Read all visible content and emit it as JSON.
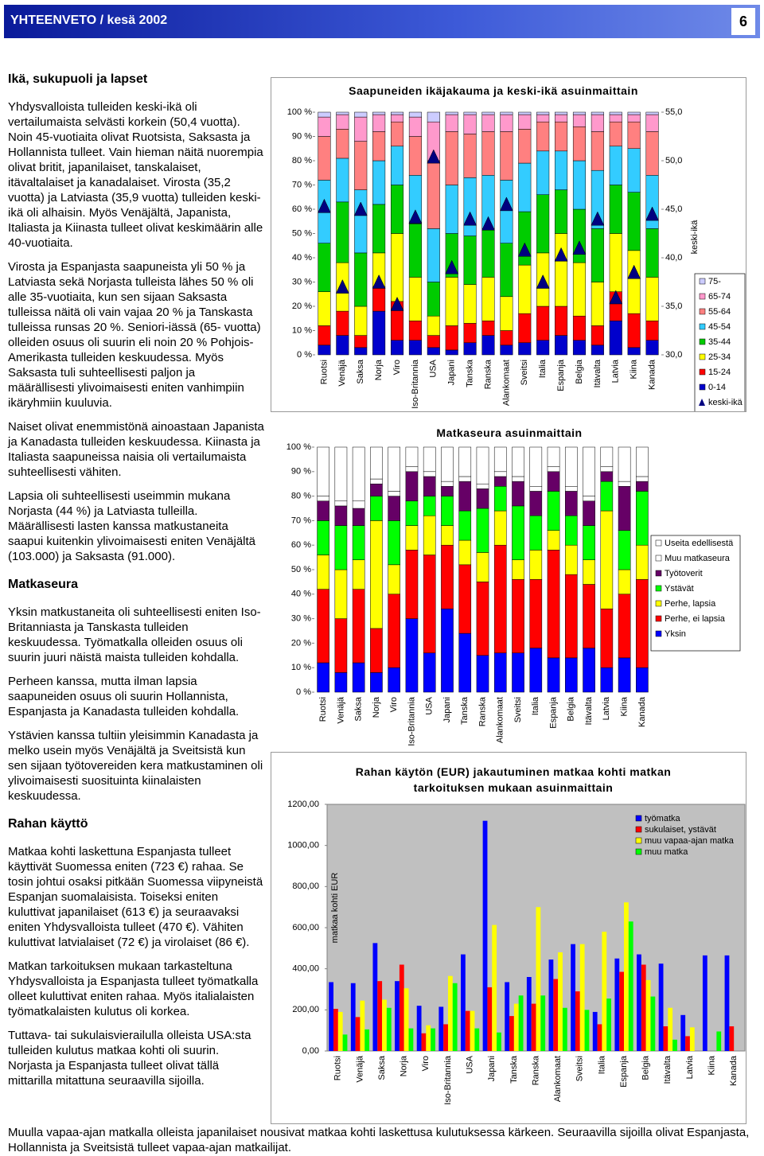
{
  "header": {
    "title": "YHTEENVETO / kesä 2002",
    "page": "6"
  },
  "sections": [
    {
      "heading": "Ikä, sukupuoli ja lapset",
      "paragraphs": [
        "Yhdysvalloista tulleiden keski-ikä oli vertailumaista selvästi korkein (50,4 vuotta). Noin 45-vuotiaita olivat Ruotsista, Saksasta ja Hollannista tulleet. Vain hieman näitä nuorempia olivat britit, japanilaiset, tanskalaiset, itävaltalaiset ja kanadalaiset. Virosta (35,2 vuotta) ja Latviasta (35,9 vuotta) tulleiden keski-ikä oli alhaisin. Myös Venäjältä, Japanista, Italiasta ja Kiinasta tulleet olivat keskimäärin alle 40-vuotiaita.",
        "Virosta ja Espanjasta saapuneista yli 50 % ja Latviasta sekä Norjasta tulleista lähes 50 % oli alle 35-vuotiaita, kun sen sijaan Saksasta tulleissa näitä oli vain vajaa 20 % ja Tanskasta tulleissa runsas 20 %. Seniori-iässä (65- vuotta) olleiden osuus oli suurin eli noin 20 % Pohjois-Amerikasta tulleiden keskuudessa. Myös Saksasta tuli suhteellisesti paljon ja määrällisesti ylivoimaisesti eniten vanhimpiin ikäryhmiin kuuluvia.",
        "Naiset olivat enemmistönä ainoastaan Japanista ja Kanadasta tulleiden keskuudessa. Kiinasta ja Italiasta saapuneissa naisia oli vertailumaista suhteellisesti vähiten.",
        "Lapsia oli suhteellisesti useimmin mukana Norjasta (44 %) ja Latviasta tulleilla. Määrällisesti lasten kanssa matkustaneita saapui kuitenkin ylivoimaisesti eniten Venäjältä (103.000) ja Saksasta (91.000)."
      ]
    },
    {
      "heading": "Matkaseura",
      "paragraphs": [
        "Yksin matkustaneita oli suhteellisesti eniten Iso-Britanniasta ja Tanskasta tulleiden keskuudessa. Työmatkalla olleiden osuus oli suurin juuri näistä maista tulleiden kohdalla.",
        "Perheen kanssa, mutta ilman lapsia saapuneiden osuus oli suurin Hollannista, Espanjasta ja Kanadasta tulleiden kohdalla.",
        "Ystävien kanssa tultiin yleisimmin Kanadasta ja melko usein myös Venäjältä ja Sveitsistä kun sen sijaan työtovereiden kera matkustaminen oli ylivoimaisesti suosituinta kiinalaisten keskuudessa."
      ]
    },
    {
      "heading": "Rahan käyttö",
      "paragraphs": [
        "Matkaa kohti laskettuna Espanjasta tulleet käyttivät Suomessa eniten (723 €) rahaa. Se tosin johtui osaksi pitkään Suomessa viipyneistä Espanjan suomalaisista. Toiseksi eniten kuluttivat japanilaiset (613 €) ja seuraavaksi eniten Yhdysvalloista tulleet (470 €). Vähiten kuluttivat latvialaiset (72 €) ja virolaiset (86 €).",
        "Matkan tarkoituksen mukaan tarkasteltuna Yhdysvalloista ja Espanjasta tulleet työmatkalla olleet kuluttivat eniten rahaa. Myös italialaisten työmatkalaisten kulutus oli korkea.",
        "Tuttava- tai sukulaisvierailulla olleista USA:sta tulleiden kulutus matkaa kohti oli suurin. Norjasta ja Espanjasta tulleet olivat tällä mittarilla mitattuna seuraavilla sijoilla."
      ]
    }
  ],
  "footer": "Muulla vapaa-ajan matkalla olleista japanilaiset nousivat matkaa kohti laskettusa kulutuksessa kärkeen. Seuraavilla sijoilla olivat Espanjasta, Hollannista ja Sveitsistä tulleet vapaa-ajan matkailijat.",
  "chart_data": [
    {
      "type": "bar",
      "stacked": true,
      "title": "Saapuneiden ikäjakauma ja keski-ikä asuinmaittain",
      "categories": [
        "Ruotsi",
        "Venäjä",
        "Saksa",
        "Norja",
        "Viro",
        "Iso-Britannia",
        "USA",
        "Japani",
        "Tanska",
        "Ranska",
        "Alankomaat",
        "Sveitsi",
        "Italia",
        "Espanja",
        "Belgia",
        "Itävalta",
        "Latvia",
        "Kiina",
        "Kanada"
      ],
      "series": [
        {
          "name": "0-14",
          "color": "#0000cc",
          "values": [
            4,
            8,
            3,
            18,
            6,
            6,
            3,
            2,
            5,
            8,
            4,
            5,
            6,
            8,
            6,
            4,
            14,
            3,
            6
          ]
        },
        {
          "name": "15-24",
          "color": "#ff0000",
          "values": [
            8,
            10,
            5,
            10,
            16,
            8,
            5,
            10,
            8,
            6,
            6,
            12,
            14,
            12,
            10,
            8,
            12,
            14,
            8
          ]
        },
        {
          "name": "25-34",
          "color": "#ffff00",
          "values": [
            14,
            20,
            12,
            14,
            28,
            18,
            8,
            20,
            16,
            18,
            14,
            20,
            22,
            30,
            22,
            18,
            24,
            26,
            18
          ]
        },
        {
          "name": "35-44",
          "color": "#00cc00",
          "values": [
            20,
            25,
            22,
            20,
            20,
            22,
            14,
            18,
            20,
            20,
            22,
            22,
            24,
            18,
            22,
            22,
            20,
            24,
            20
          ]
        },
        {
          "name": "45-54",
          "color": "#33ccff",
          "values": [
            26,
            18,
            26,
            18,
            16,
            20,
            22,
            20,
            24,
            22,
            26,
            20,
            18,
            16,
            20,
            24,
            16,
            18,
            22
          ]
        },
        {
          "name": "55-64",
          "color": "#ff8080",
          "values": [
            18,
            12,
            20,
            12,
            10,
            16,
            28,
            22,
            18,
            18,
            20,
            14,
            12,
            12,
            14,
            16,
            10,
            11,
            18
          ]
        },
        {
          "name": "65-74",
          "color": "#ff99cc",
          "values": [
            8,
            6,
            10,
            7,
            3,
            8,
            16,
            7,
            8,
            7,
            7,
            6,
            3,
            3,
            5,
            7,
            3,
            3,
            7
          ]
        },
        {
          "name": "75-",
          "color": "#ccccff",
          "values": [
            2,
            1,
            2,
            1,
            1,
            2,
            4,
            1,
            1,
            1,
            1,
            1,
            1,
            1,
            1,
            1,
            1,
            1,
            1
          ]
        },
        {
          "name": "keski-ikä",
          "color": "#000080",
          "axis": "y2",
          "marker": "triangle",
          "values": [
            45.3,
            37.0,
            45.0,
            37.5,
            35.2,
            44.2,
            50.4,
            39.0,
            44.0,
            43.5,
            45.5,
            40.8,
            37.5,
            40.3,
            41.0,
            44.0,
            35.9,
            38.5,
            44.5
          ]
        }
      ],
      "ylim": [
        0,
        100
      ],
      "yticks": [
        {
          "value": 0,
          "label": "0 %"
        },
        {
          "value": 10,
          "label": "10 %"
        },
        {
          "value": 20,
          "label": "20 %"
        },
        {
          "value": 30,
          "label": "30 %"
        },
        {
          "value": 40,
          "label": "40 %"
        },
        {
          "value": 50,
          "label": "50 %"
        },
        {
          "value": 60,
          "label": "60 %"
        },
        {
          "value": 70,
          "label": "70 %"
        },
        {
          "value": 80,
          "label": "80 %"
        },
        {
          "value": 90,
          "label": "90 %"
        },
        {
          "value": 100,
          "label": "100 %"
        }
      ],
      "y2label": "keski-ikä",
      "y2lim": [
        30,
        55
      ],
      "y2ticks": [
        {
          "value": 30,
          "label": "30,0"
        },
        {
          "value": 35,
          "label": "35,0"
        },
        {
          "value": 40,
          "label": "40,0"
        },
        {
          "value": 45,
          "label": "45,0"
        },
        {
          "value": 50,
          "label": "50,0"
        },
        {
          "value": 55,
          "label": "55,0"
        }
      ],
      "grid": false,
      "legend": "right"
    },
    {
      "type": "bar",
      "stacked": true,
      "title": "Matkaseura asuinmaittain",
      "categories": [
        "Ruotsi",
        "Venäjä",
        "Saksa",
        "Norja",
        "Viro",
        "Iso-Britannia",
        "USA",
        "Japani",
        "Tanska",
        "Ranska",
        "Alankomaat",
        "Sveitsi",
        "Italia",
        "Espanja",
        "Belgia",
        "Itävalta",
        "Latvia",
        "Kiina",
        "Kanada"
      ],
      "series": [
        {
          "name": "Yksin",
          "color": "#0000ff",
          "values": [
            12,
            8,
            12,
            8,
            10,
            30,
            16,
            34,
            24,
            15,
            16,
            16,
            18,
            14,
            14,
            18,
            10,
            14,
            10
          ]
        },
        {
          "name": "Perhe, ei lapsia",
          "color": "#ff0000",
          "values": [
            30,
            22,
            30,
            18,
            30,
            28,
            40,
            26,
            28,
            30,
            44,
            30,
            28,
            44,
            34,
            26,
            24,
            26,
            36
          ]
        },
        {
          "name": "Perhe, lapsia",
          "color": "#ffff00",
          "values": [
            14,
            20,
            12,
            44,
            12,
            10,
            16,
            8,
            10,
            12,
            14,
            8,
            12,
            8,
            12,
            10,
            40,
            10,
            14
          ]
        },
        {
          "name": "Ystävät",
          "color": "#00ff00",
          "values": [
            14,
            18,
            14,
            10,
            18,
            10,
            8,
            12,
            12,
            18,
            10,
            22,
            14,
            16,
            12,
            14,
            12,
            16,
            22
          ]
        },
        {
          "name": "Työtoverit",
          "color": "#660066",
          "values": [
            8,
            8,
            7,
            5,
            10,
            12,
            8,
            4,
            12,
            8,
            4,
            10,
            10,
            8,
            10,
            10,
            4,
            18,
            4
          ]
        },
        {
          "name": "Muu matkaseura",
          "color": "#ffffff",
          "values": [
            2,
            2,
            3,
            2,
            2,
            2,
            2,
            2,
            2,
            2,
            2,
            2,
            2,
            2,
            2,
            2,
            2,
            2,
            2
          ]
        },
        {
          "name": "Useita edellisestä",
          "color": "#ffffff",
          "values": [
            20,
            22,
            22,
            13,
            18,
            8,
            10,
            14,
            12,
            15,
            10,
            12,
            16,
            8,
            16,
            20,
            8,
            14,
            12
          ]
        }
      ],
      "ylim": [
        0,
        100
      ],
      "yticks": [
        {
          "value": 0,
          "label": "0 %"
        },
        {
          "value": 10,
          "label": "10 %"
        },
        {
          "value": 20,
          "label": "20 %"
        },
        {
          "value": 30,
          "label": "30 %"
        },
        {
          "value": 40,
          "label": "40 %"
        },
        {
          "value": 50,
          "label": "50 %"
        },
        {
          "value": 60,
          "label": "60 %"
        },
        {
          "value": 70,
          "label": "70 %"
        },
        {
          "value": 80,
          "label": "80 %"
        },
        {
          "value": 90,
          "label": "90 %"
        },
        {
          "value": 100,
          "label": "100 %"
        }
      ],
      "grid": false,
      "legend": "right"
    },
    {
      "type": "bar",
      "stacked": false,
      "title": "Rahan käytön (EUR) jakautuminen matkaa kohti matkan tarkoituksen mukaan asuinmaittain",
      "ylabel": "matkaa kohti EUR",
      "categories": [
        "Ruotsi",
        "Venäjä",
        "Saksa",
        "Norja",
        "Viro",
        "Iso-Britannia",
        "USA",
        "Japani",
        "Tanska",
        "Ranska",
        "Alankomaat",
        "Sveitsi",
        "Italia",
        "Espanja",
        "Belgia",
        "Itävalta",
        "Latvia",
        "Kiina",
        "Kanada"
      ],
      "series": [
        {
          "name": "työmatka",
          "color": "#0000ff",
          "values": [
            335,
            330,
            525,
            340,
            220,
            215,
            470,
            1120,
            335,
            360,
            445,
            520,
            190,
            450,
            470,
            425,
            175,
            465,
            465
          ]
        },
        {
          "name": "sukulaiset, ystävät",
          "color": "#ff0000",
          "values": [
            205,
            165,
            340,
            420,
            86,
            130,
            195,
            310,
            170,
            230,
            350,
            290,
            130,
            385,
            420,
            120,
            72,
            null,
            120
          ]
        },
        {
          "name": "muu vapaa-ajan matka",
          "color": "#ffff00",
          "values": [
            190,
            245,
            250,
            305,
            125,
            365,
            195,
            613,
            230,
            700,
            480,
            520,
            580,
            723,
            345,
            210,
            115,
            null,
            null
          ]
        },
        {
          "name": "muu matka",
          "color": "#00ff00",
          "values": [
            80,
            105,
            210,
            110,
            110,
            330,
            110,
            90,
            270,
            270,
            210,
            200,
            255,
            630,
            265,
            55,
            null,
            95,
            null
          ]
        }
      ],
      "ylim": [
        0,
        1200
      ],
      "yticks": [
        {
          "value": 0,
          "label": "0,00"
        },
        {
          "value": 200,
          "label": "200,00"
        },
        {
          "value": 400,
          "label": "400,00"
        },
        {
          "value": 600,
          "label": "600,00"
        },
        {
          "value": 800,
          "label": "800,00"
        },
        {
          "value": 1000,
          "label": "1000,00"
        },
        {
          "value": 1200,
          "label": "1200,00"
        }
      ],
      "grid": false,
      "plot_background": "#c0c0c0",
      "legend": "upper right"
    }
  ]
}
